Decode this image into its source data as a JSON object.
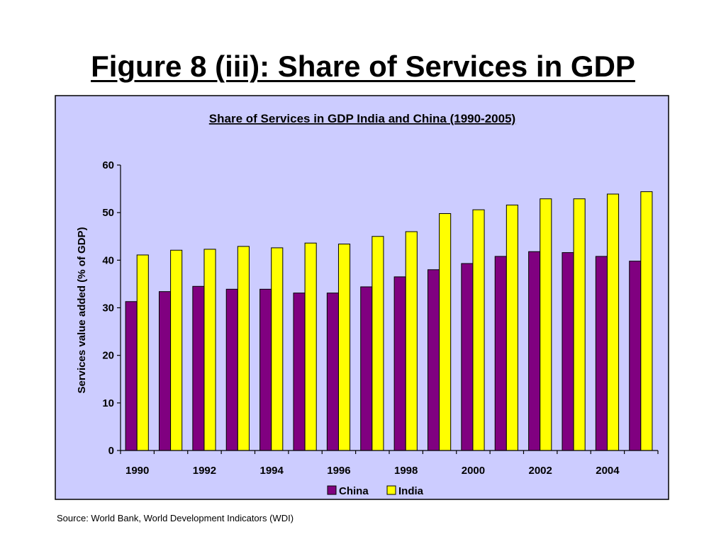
{
  "slide": {
    "title": "Figure 8 (iii): Share of Services in GDP",
    "source": "Source: World Bank, World Development Indicators (WDI)"
  },
  "colors": {
    "chart_background": "#CCCCFF",
    "china": "#800080",
    "india": "#FFFF00",
    "bar_outline": "#000000"
  },
  "chart_data": {
    "type": "bar",
    "title": "Share of Services in GDP India and China (1990-2005)",
    "xlabel": "",
    "ylabel": "Services value added (% of GDP)",
    "ylim": [
      0,
      60
    ],
    "yticks": [
      0,
      10,
      20,
      30,
      40,
      50,
      60
    ],
    "categories": [
      "1990",
      "1991",
      "1992",
      "1993",
      "1994",
      "1995",
      "1996",
      "1997",
      "1998",
      "1999",
      "2000",
      "2001",
      "2002",
      "2003",
      "2004",
      "2005"
    ],
    "xtick_labels": [
      "1990",
      "",
      "1992",
      "",
      "1994",
      "",
      "1996",
      "",
      "1998",
      "",
      "2000",
      "",
      "2002",
      "",
      "2004",
      ""
    ],
    "series": [
      {
        "name": "China",
        "values": [
          31.3,
          33.4,
          34.5,
          33.9,
          33.9,
          33.1,
          33.1,
          34.4,
          36.5,
          38.0,
          39.3,
          40.8,
          41.8,
          41.6,
          40.8,
          39.8
        ]
      },
      {
        "name": "India",
        "values": [
          41.1,
          42.1,
          42.3,
          42.9,
          42.6,
          43.6,
          43.4,
          45.0,
          46.0,
          49.8,
          50.6,
          51.6,
          52.9,
          52.9,
          53.9,
          54.4
        ]
      }
    ],
    "grid": false,
    "legend": "bottom"
  }
}
